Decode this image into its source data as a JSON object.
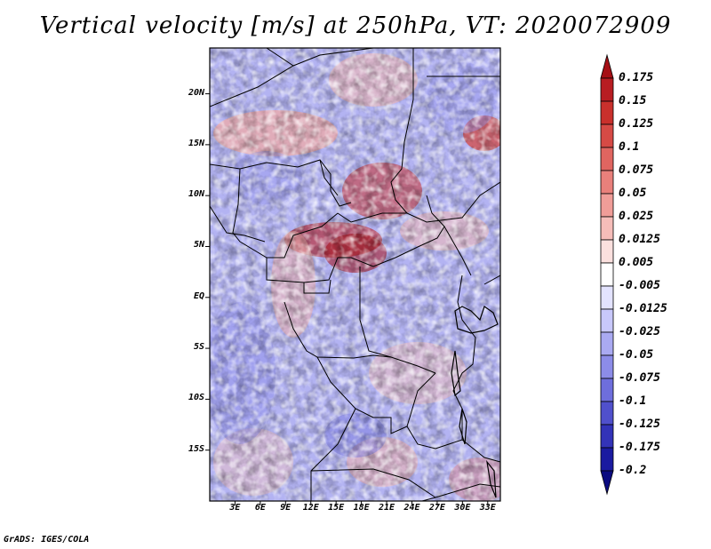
{
  "title": "Vertical velocity [m/s] at 250hPa, VT: 2020072909",
  "credit": "GrADS: IGES/COLA",
  "map": {
    "lat_labels": [
      "20N",
      "15N",
      "10N",
      "5N",
      "EQ",
      "5S",
      "10S",
      "15S"
    ],
    "lat_values": [
      20,
      15,
      10,
      5,
      0,
      -5,
      -10,
      -15
    ],
    "lon_labels": [
      "3E",
      "6E",
      "9E",
      "12E",
      "15E",
      "18E",
      "21E",
      "24E",
      "27E",
      "30E",
      "33E"
    ],
    "lon_values": [
      3,
      6,
      9,
      12,
      15,
      18,
      21,
      24,
      27,
      30,
      33
    ],
    "lon_range": [
      0,
      34.5
    ],
    "lat_range": [
      -20,
      24.5
    ]
  },
  "colorbar": {
    "labels": [
      "0.175",
      "0.15",
      "0.125",
      "0.1",
      "0.075",
      "0.05",
      "0.025",
      "0.0125",
      "0.005",
      "-0.005",
      "-0.0125",
      "-0.025",
      "-0.05",
      "-0.075",
      "-0.1",
      "-0.125",
      "-0.175",
      "-0.2"
    ],
    "colors": [
      "#a50f15",
      "#b81d22",
      "#c9302c",
      "#d64a45",
      "#e06560",
      "#e9807b",
      "#f09d98",
      "#f6bdb9",
      "#fbe0de",
      "#ffffff",
      "#e3e3ff",
      "#c8c8fb",
      "#aaaaf2",
      "#8c8ce8",
      "#6e6edc",
      "#5050cc",
      "#3333b8",
      "#1a1aa0",
      "#0b0b80"
    ]
  }
}
